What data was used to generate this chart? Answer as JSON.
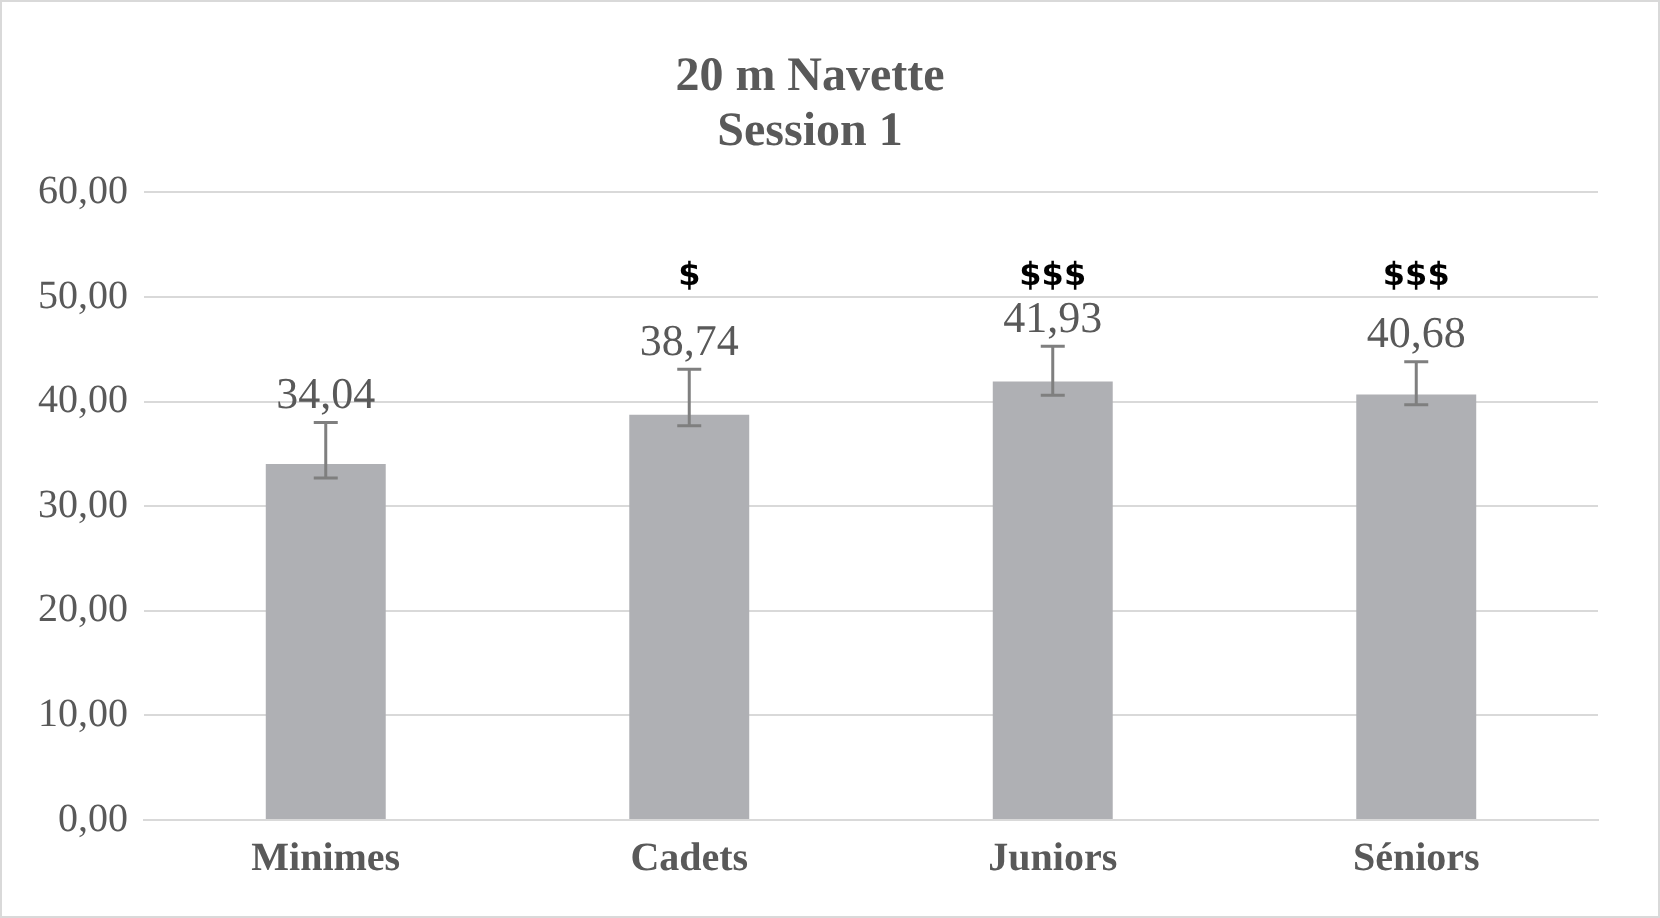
{
  "chart_data": {
    "type": "bar",
    "title": "20 m Navette\nSession 1",
    "categories": [
      "Minimes",
      "Cadets",
      "Juniors",
      "Séniors"
    ],
    "values": [
      34.04,
      38.74,
      41.93,
      40.68
    ],
    "color": "#afb0b4",
    "value_labels": [
      "34,04",
      "38,74",
      "41,93",
      "40,68"
    ],
    "errors": [
      [
        32.7,
        38.0
      ],
      [
        37.7,
        43.1
      ],
      [
        40.6,
        45.3
      ],
      [
        39.7,
        43.8
      ]
    ],
    "ylim": [
      0,
      60
    ],
    "yticks": [
      {
        "value": 0,
        "label": "0,00"
      },
      {
        "value": 10,
        "label": "10,00"
      },
      {
        "value": 20,
        "label": "20,00"
      },
      {
        "value": 30,
        "label": "30,00"
      },
      {
        "value": 40,
        "label": "40,00"
      },
      {
        "value": 50,
        "label": "50,00"
      },
      {
        "value": 60,
        "label": "60,00"
      }
    ],
    "grid": "y",
    "legend": false,
    "annotations": [
      "$",
      "$$$",
      "$$$"
    ]
  }
}
